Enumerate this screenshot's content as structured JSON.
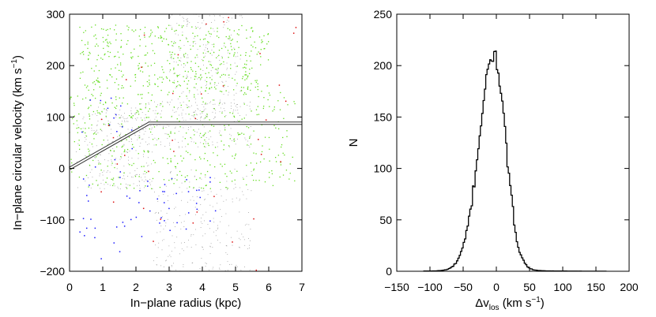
{
  "chart_data": [
    {
      "type": "scatter",
      "xlabel": "In−plane radius (kpc)",
      "ylabel_main": "In−plane circular velocity (km s",
      "ylabel_sup": "−1",
      "ylabel_close": ")",
      "xlim": [
        0,
        7
      ],
      "ylim": [
        -200,
        300
      ],
      "xticks": [
        0,
        1,
        2,
        3,
        4,
        5,
        6,
        7
      ],
      "yticks": [
        -200,
        -100,
        0,
        100,
        200,
        300
      ],
      "xtick_labels": [
        "0",
        "1",
        "2",
        "3",
        "4",
        "5",
        "6",
        "7"
      ],
      "ytick_labels": [
        "−200",
        "−100",
        "0",
        "100",
        "200",
        "300"
      ],
      "grid": false,
      "series": [
        {
          "color": "#8c8c8c",
          "clusters": [
            {
              "x": [
                0.2,
                2.5
              ],
              "y": [
                -40,
                120
              ]
            },
            {
              "x": [
                1.5,
                5.5
              ],
              "y": [
                40,
                130
              ]
            },
            {
              "x": [
                2.5,
                5.5
              ],
              "y": [
                -200,
                0
              ]
            },
            {
              "x": [
                3.0,
                5.2
              ],
              "y": [
                100,
                300
              ]
            }
          ]
        },
        {
          "color": "#66dd22",
          "clusters": [
            {
              "x": [
                0.0,
                6.8
              ],
              "y": [
                -40,
                150
              ]
            },
            {
              "x": [
                0.3,
                6.0
              ],
              "y": [
                150,
                280
              ]
            }
          ]
        },
        {
          "color": "#1a1aff",
          "clusters": [
            {
              "x": [
                1.8,
                4.5
              ],
              "y": [
                -140,
                -10
              ]
            },
            {
              "x": [
                0.3,
                2.0
              ],
              "y": [
                -180,
                150
              ]
            }
          ]
        },
        {
          "color": "#dd1111",
          "clusters": [
            {
              "x": [
                0.1,
                6.9
              ],
              "y": [
                -200,
                300
              ]
            }
          ]
        }
      ],
      "model_line": {
        "color": "#ffffff",
        "x": [
          0,
          2.4,
          7
        ],
        "y": [
          0,
          88,
          88
        ]
      }
    },
    {
      "type": "line",
      "step": true,
      "xlabel_prefix": "Δv",
      "xlabel_sub": "los",
      "xlabel_units": " (km s",
      "xlabel_sup": "−1",
      "xlabel_close": ")",
      "ylabel": "N",
      "xlim": [
        -150,
        200
      ],
      "ylim": [
        0,
        250
      ],
      "xticks": [
        -150,
        -100,
        -50,
        0,
        50,
        100,
        150,
        200
      ],
      "yticks": [
        0,
        50,
        100,
        150,
        200,
        250
      ],
      "xtick_labels": [
        "−150",
        "−100",
        "−50",
        "0",
        "50",
        "100",
        "150",
        "200"
      ],
      "ytick_labels": [
        "0",
        "50",
        "100",
        "150",
        "200",
        "250"
      ],
      "grid": false,
      "color": "#000000",
      "bin_width": 2,
      "peak_center": -4,
      "peak_value": 210,
      "sigma_left": 22,
      "sigma_right": 18,
      "x_range": [
        -110,
        165
      ]
    }
  ]
}
